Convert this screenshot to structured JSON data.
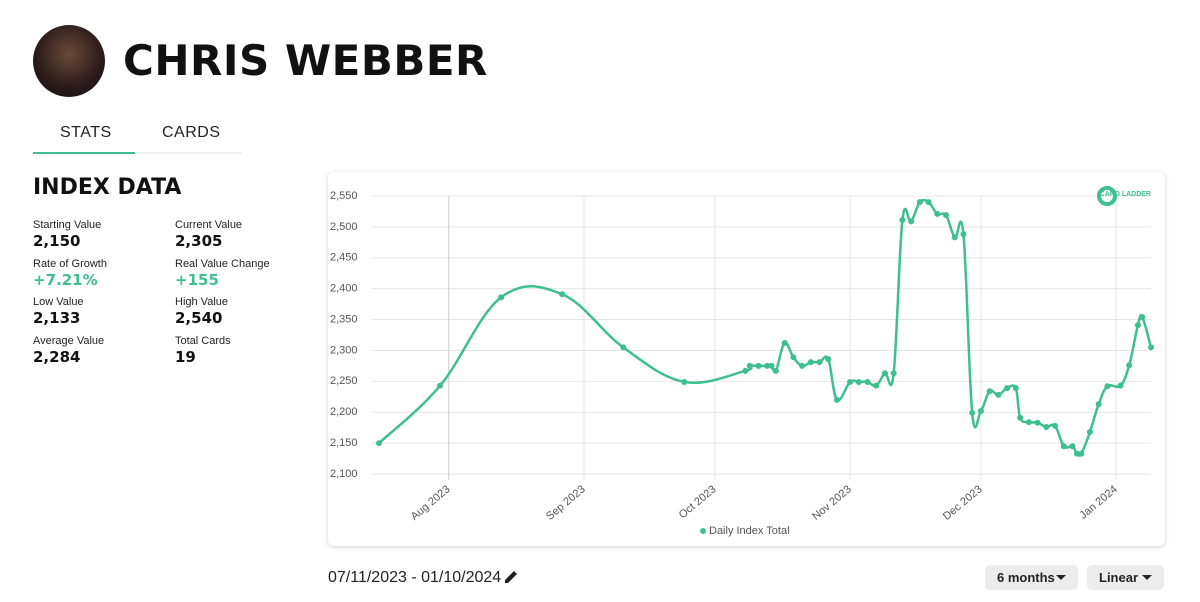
{
  "header": {
    "name": "CHRIS WEBBER"
  },
  "tabs": [
    "STATS",
    "CARDS"
  ],
  "index_data": {
    "title": "INDEX DATA",
    "stats": [
      {
        "label": "Starting Value",
        "value": "2,150"
      },
      {
        "label": "Current Value",
        "value": "2,305"
      },
      {
        "label": "Rate of Growth",
        "value": "+7.21%",
        "color": "#3dbf8f"
      },
      {
        "label": "Real Value Change",
        "value": "+155",
        "color": "#3dbf8f"
      },
      {
        "label": "Low Value",
        "value": "2,133"
      },
      {
        "label": "High Value",
        "value": "2,540"
      },
      {
        "label": "Average Value",
        "value": "2,284"
      },
      {
        "label": "Total Cards",
        "value": "19"
      }
    ]
  },
  "logo": "CARD LADDER",
  "chart_data": {
    "type": "line",
    "x": [
      "2023-07-16",
      "2023-07-30",
      "2023-08-13",
      "2023-08-27",
      "2023-09-10",
      "2023-09-24",
      "2023-10-08",
      "2023-10-09",
      "2023-10-11",
      "2023-10-13",
      "2023-10-14",
      "2023-10-15",
      "2023-10-17",
      "2023-10-19",
      "2023-10-21",
      "2023-10-23",
      "2023-10-25",
      "2023-10-27",
      "2023-10-29",
      "2023-11-01",
      "2023-11-03",
      "2023-11-05",
      "2023-11-07",
      "2023-11-09",
      "2023-11-11",
      "2023-11-13",
      "2023-11-15",
      "2023-11-17",
      "2023-11-19",
      "2023-11-21",
      "2023-11-23",
      "2023-11-25",
      "2023-11-27",
      "2023-11-29",
      "2023-12-01",
      "2023-12-03",
      "2023-12-05",
      "2023-12-07",
      "2023-12-09",
      "2023-12-10",
      "2023-12-12",
      "2023-12-14",
      "2023-12-16",
      "2023-12-18",
      "2023-12-20",
      "2023-12-22",
      "2023-12-23",
      "2023-12-24",
      "2023-12-26",
      "2023-12-28",
      "2023-12-30",
      "2024-01-02",
      "2024-01-04",
      "2024-01-06",
      "2024-01-07",
      "2024-01-09"
    ],
    "series": [
      {
        "name": "Daily Index Total",
        "color": "#3dbf8f",
        "values": [
          2150,
          2243,
          2386,
          2391,
          2305,
          2249,
          2267,
          2275,
          2275,
          2275,
          2275,
          2267,
          2312,
          2289,
          2275,
          2281,
          2281,
          2286,
          2220,
          2249,
          2249,
          2249,
          2243,
          2263,
          2263,
          2511,
          2509,
          2540,
          2540,
          2521,
          2519,
          2483,
          2488,
          2199,
          2202,
          2234,
          2228,
          2239,
          2239,
          2191,
          2184,
          2183,
          2176,
          2178,
          2145,
          2145,
          2133,
          2133,
          2168,
          2213,
          2242,
          2243,
          2276,
          2341,
          2354,
          2305
        ]
      }
    ],
    "xlim": [
      "2023-07-16",
      "2024-01-09"
    ],
    "xticks": [
      {
        "value": "2023-08-01",
        "label": "Aug 2023"
      },
      {
        "value": "2023-09-01",
        "label": "Sep 2023"
      },
      {
        "value": "2023-10-01",
        "label": "Oct 2023"
      },
      {
        "value": "2023-11-01",
        "label": "Nov 2023"
      },
      {
        "value": "2023-12-01",
        "label": "Dec 2023"
      },
      {
        "value": "2024-01-01",
        "label": "Jan 2024"
      }
    ],
    "ylim": [
      2100,
      2550
    ],
    "yticks": [
      {
        "value": 2100,
        "label": "2,100"
      },
      {
        "value": 2150,
        "label": "2,150"
      },
      {
        "value": 2200,
        "label": "2,200"
      },
      {
        "value": 2250,
        "label": "2,250"
      },
      {
        "value": 2300,
        "label": "2,300"
      },
      {
        "value": 2350,
        "label": "2,350"
      },
      {
        "value": 2400,
        "label": "2,400"
      },
      {
        "value": 2450,
        "label": "2,450"
      },
      {
        "value": 2500,
        "label": "2,500"
      },
      {
        "value": 2550,
        "label": "2,550"
      }
    ],
    "grid": true
  },
  "footer": {
    "date_range": "07/11/2023 - 01/10/2024",
    "period": "6 months",
    "scale": "Linear"
  }
}
